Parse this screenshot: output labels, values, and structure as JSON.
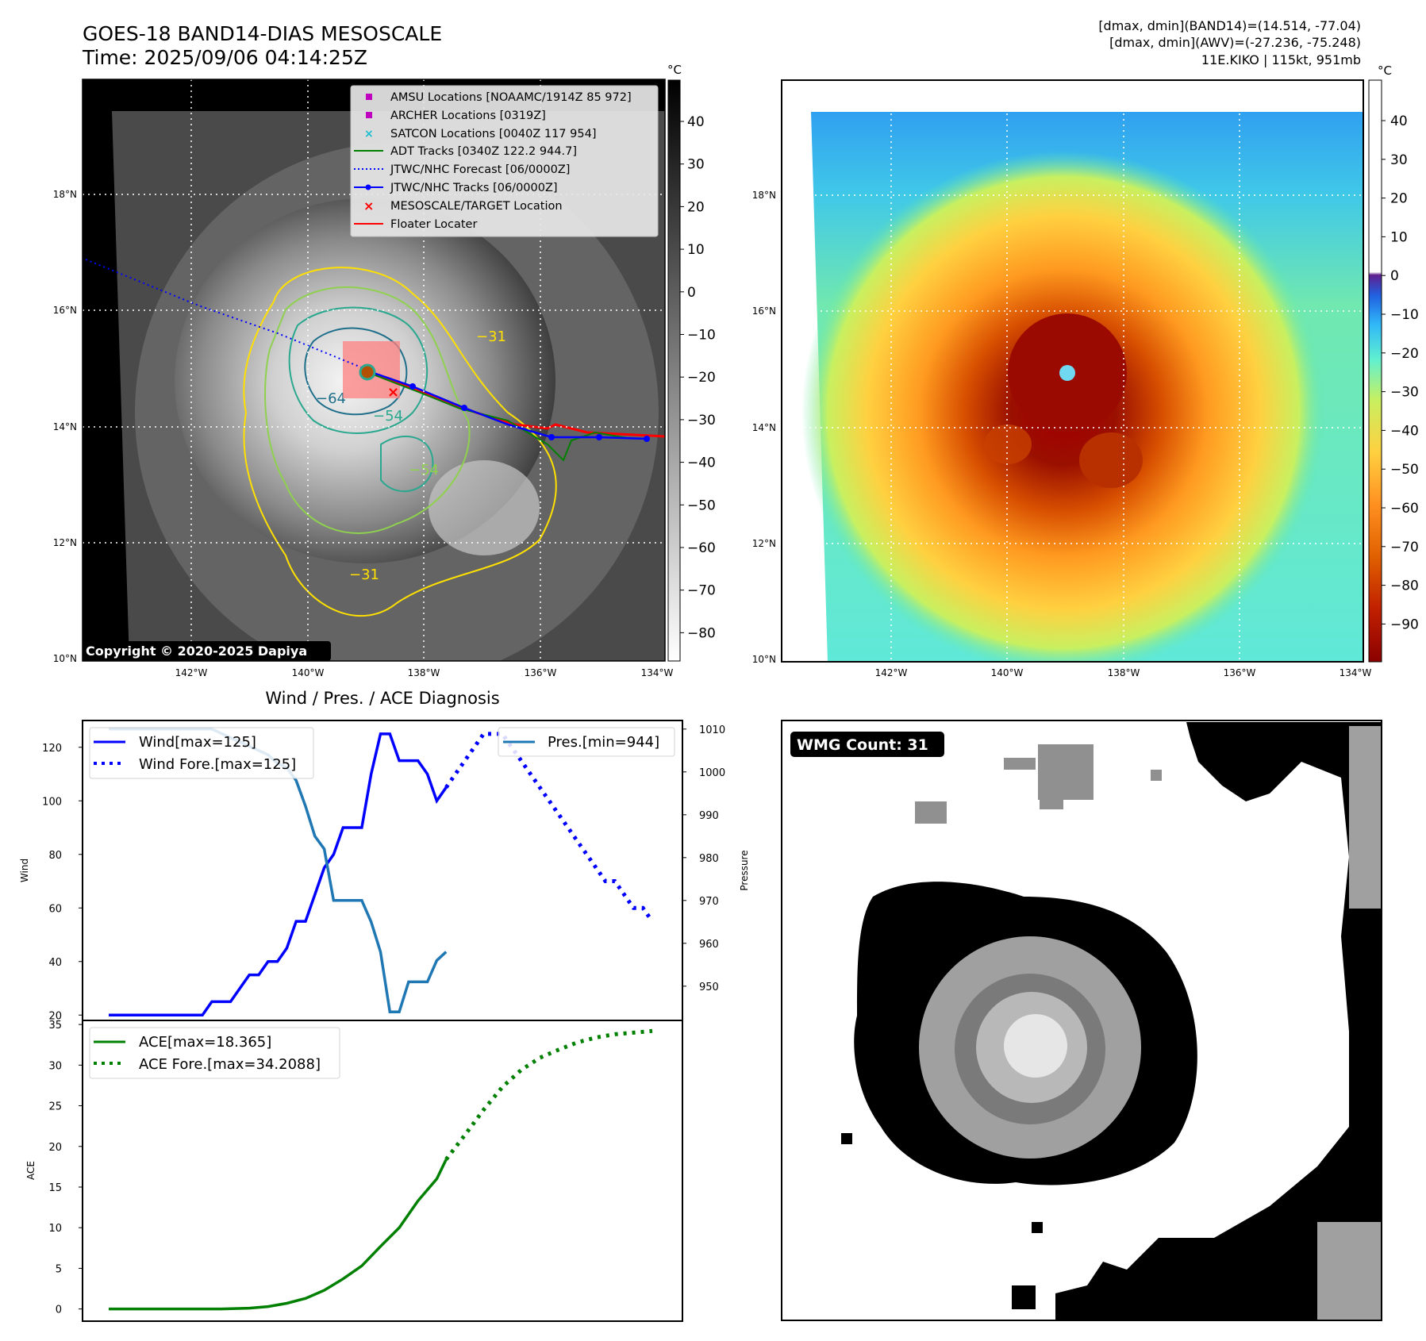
{
  "header": {
    "title_line1": "GOES-18 BAND14-DIAS MESOSCALE",
    "title_line2": "Time: 2025/09/06 04:14:25Z",
    "right_line1": "[dmax, dmin](BAND14)=(14.514, -77.04)",
    "right_line2": "[dmax, dmin](AWV)=(-27.236, -75.248)",
    "right_line3": "11E.KIKO | 115kt, 951mb"
  },
  "colors": {
    "wind": "#0000ff",
    "pressure": "#1f77b4",
    "ace": "#008000",
    "track_red": "#ff0000",
    "adt_green": "#008000",
    "satcon_cyan": "#17becf",
    "amsu_magenta": "#bf00bf",
    "contour_yellow": "#ffe000",
    "contour_lightgreen": "#8fd14f",
    "contour_teal": "#2aa88f",
    "contour_darkteal": "#1f6f8b"
  },
  "panel_bw": {
    "unit": "°C",
    "cbar_ticks": [
      "40",
      "30",
      "20",
      "10",
      "0",
      "−10",
      "−20",
      "−30",
      "−40",
      "−50",
      "−60",
      "−70",
      "−80"
    ],
    "lat_ticks": [
      "18°N",
      "16°N",
      "14°N",
      "12°N",
      "10°N"
    ],
    "lon_ticks": [
      "142°W",
      "140°W",
      "138°W",
      "136°W",
      "134°W"
    ],
    "copyright": "Copyright © 2020-2025 Dapiya",
    "contour_labels": [
      "−31",
      "−64",
      "−54",
      "−31",
      "−54"
    ],
    "legend": [
      {
        "label": "AMSU Locations [NOAAMC/1914Z 85 972]",
        "symbol": "amsu-square-icon"
      },
      {
        "label": "ARCHER Locations [0319Z]",
        "symbol": "archer-square-icon"
      },
      {
        "label": "SATCON Locations [0040Z 117 954]",
        "symbol": "satcon-x-icon"
      },
      {
        "label": "ADT Tracks [0340Z 122.2 944.7]",
        "symbol": "adt-line-icon"
      },
      {
        "label": "JTWC/NHC Forecast [06/0000Z]",
        "symbol": "forecast-dotted-line-icon"
      },
      {
        "label": "JTWC/NHC Tracks [06/0000Z]",
        "symbol": "track-line-dot-icon"
      },
      {
        "label": "MESOSCALE/TARGET Location",
        "symbol": "target-x-icon"
      },
      {
        "label": "Floater Locater",
        "symbol": "floater-line-icon"
      }
    ]
  },
  "panel_color": {
    "unit": "°C",
    "cbar_ticks": [
      "40",
      "30",
      "20",
      "10",
      "0",
      "−10",
      "−20",
      "−30",
      "−40",
      "−50",
      "−60",
      "−70",
      "−80",
      "−90"
    ],
    "lat_ticks": [
      "18°N",
      "16°N",
      "14°N",
      "12°N",
      "10°N"
    ],
    "lon_ticks": [
      "142°W",
      "140°W",
      "138°W",
      "136°W",
      "134°W"
    ]
  },
  "panel_wmg": {
    "badge": "WMG Count: 31"
  },
  "chart_data": [
    {
      "type": "line",
      "title": "Wind / Pres. / ACE Diagnosis",
      "ylabel": "Wind",
      "y2label": "Pressure",
      "ylim": [
        18,
        130
      ],
      "y2lim": [
        942,
        1012
      ],
      "yticks": [
        "20",
        "40",
        "60",
        "80",
        "100",
        "120"
      ],
      "y2ticks": [
        "950",
        "960",
        "970",
        "980",
        "990",
        "1000",
        "1010"
      ],
      "legend_left": [
        "Wind[max=125]",
        "Wind Fore.[max=125]"
      ],
      "legend_right": [
        "Pres.[min=944]"
      ],
      "series": [
        {
          "name": "Wind[max=125]",
          "style": "solid",
          "x": [
            0,
            1,
            2,
            3,
            4,
            5,
            6,
            7,
            8,
            9,
            10,
            11,
            12,
            13,
            14,
            15,
            16,
            17,
            18,
            19,
            20,
            21,
            22,
            23,
            24,
            25,
            26,
            27,
            28,
            29,
            30,
            31,
            32,
            33,
            34,
            35,
            36
          ],
          "values": [
            20,
            20,
            20,
            20,
            20,
            20,
            20,
            20,
            20,
            20,
            20,
            25,
            25,
            25,
            30,
            35,
            35,
            40,
            40,
            45,
            55,
            55,
            65,
            75,
            80,
            90,
            90,
            90,
            110,
            125,
            125,
            115,
            115,
            115,
            110,
            100,
            105
          ]
        },
        {
          "name": "Wind Fore.[max=125]",
          "style": "dotted",
          "x": [
            36,
            37,
            38,
            39,
            40,
            41,
            42,
            43,
            44,
            45,
            46,
            47,
            48,
            49,
            50,
            51,
            52,
            53,
            54,
            55,
            56,
            57,
            58
          ],
          "values": [
            105,
            110,
            115,
            120,
            125,
            125,
            125,
            120,
            115,
            110,
            105,
            100,
            95,
            90,
            85,
            80,
            75,
            70,
            70,
            65,
            60,
            60,
            55
          ]
        },
        {
          "name": "Pres.[min=944]",
          "style": "solid",
          "x": [
            0,
            1,
            2,
            3,
            4,
            5,
            6,
            7,
            8,
            9,
            10,
            11,
            12,
            13,
            14,
            15,
            16,
            17,
            18,
            19,
            20,
            21,
            22,
            23,
            24,
            25,
            26,
            27,
            28,
            29,
            30,
            31,
            32,
            33,
            34,
            35,
            36
          ],
          "values": [
            1010,
            1010,
            1010,
            1010,
            1010,
            1010,
            1010,
            1010,
            1010,
            1010,
            1010,
            1010,
            1009,
            1008,
            1007,
            1006,
            1005,
            1004,
            1002,
            1001,
            998,
            992,
            985,
            982,
            970,
            970,
            970,
            970,
            965,
            958,
            944,
            944,
            951,
            951,
            951,
            956,
            958
          ]
        }
      ]
    },
    {
      "type": "line",
      "ylabel": "ACE",
      "ylim": [
        -1.5,
        35.5
      ],
      "yticks": [
        "0",
        "5",
        "10",
        "15",
        "20",
        "25",
        "30",
        "35"
      ],
      "legend": [
        "ACE[max=18.365]",
        "ACE Fore.[max=34.2088]"
      ],
      "series": [
        {
          "name": "ACE[max=18.365]",
          "style": "solid",
          "x": [
            0,
            3,
            6,
            9,
            12,
            15,
            17,
            19,
            21,
            23,
            25,
            27,
            29,
            31,
            33,
            35,
            36
          ],
          "values": [
            0,
            0,
            0,
            0,
            0,
            0.1,
            0.3,
            0.7,
            1.3,
            2.3,
            3.7,
            5.3,
            7.7,
            10,
            13.3,
            16,
            18.4
          ]
        },
        {
          "name": "ACE Fore.[max=34.2088]",
          "style": "dotted",
          "x": [
            36,
            38,
            40,
            42,
            44,
            46,
            48,
            50,
            52,
            54,
            56,
            58
          ],
          "values": [
            18.4,
            21.4,
            24.5,
            27.3,
            29.4,
            30.9,
            31.9,
            32.8,
            33.4,
            33.8,
            34.0,
            34.2
          ]
        }
      ]
    }
  ]
}
